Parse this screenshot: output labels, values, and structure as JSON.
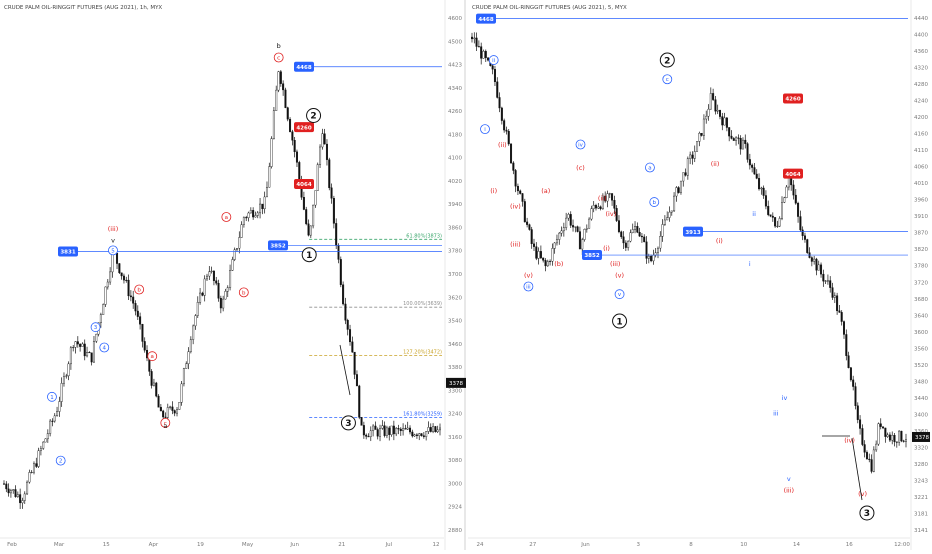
{
  "layout": "two-panel",
  "colors": {
    "up": "#111111",
    "badge_blue": "#2962ff",
    "badge_red": "#e02020",
    "fib_green": "#3aa56b",
    "fib_gray": "#8f8f8f",
    "fib_gold": "#c9a227",
    "fib_blue": "#4a7bd8",
    "dashed_red": "#e56b6b"
  },
  "chart_data": [
    {
      "type": "candlestick",
      "title": "CRUDE PALM OIL-RINGGIT FUTURES (AUG 2021), 1h, MYX",
      "x_ticks": [
        "Feb",
        "Mar",
        "15",
        "Apr",
        "19",
        "May",
        "Jun",
        "21",
        "Jul",
        "12"
      ],
      "y_ticks": [
        "4600",
        "4500",
        "4423",
        "4340",
        "4260",
        "4180",
        "4100",
        "4020",
        "3940",
        "3860",
        "3780",
        "3700",
        "3620",
        "3540",
        "3460",
        "3380",
        "3300",
        "3240",
        "3160",
        "3080",
        "3000",
        "2924",
        "2880"
      ],
      "ylim": [
        2850,
        4650
      ],
      "path": [
        [
          0,
          3030
        ],
        [
          0.04,
          2980
        ],
        [
          0.08,
          3130
        ],
        [
          0.12,
          3280
        ],
        [
          0.16,
          3530
        ],
        [
          0.2,
          3460
        ],
        [
          0.25,
          3831
        ],
        [
          0.3,
          3640
        ],
        [
          0.33,
          3440
        ],
        [
          0.36,
          3260
        ],
        [
          0.4,
          3300
        ],
        [
          0.43,
          3560
        ],
        [
          0.47,
          3780
        ],
        [
          0.5,
          3640
        ],
        [
          0.55,
          3950
        ],
        [
          0.6,
          4000
        ],
        [
          0.63,
          4468
        ],
        [
          0.67,
          4150
        ],
        [
          0.7,
          3860
        ],
        [
          0.73,
          4260
        ],
        [
          0.76,
          3890
        ],
        [
          0.78,
          3640
        ],
        [
          0.8,
          3480
        ],
        [
          0.82,
          3210
        ]
      ],
      "price_badges": [
        {
          "label": "4468",
          "y": 4468,
          "color": "blue"
        },
        {
          "label": "4260",
          "y": 4260,
          "color": "red"
        },
        {
          "label": "4064",
          "y": 4064,
          "color": "red"
        },
        {
          "label": "3852",
          "y": 3852,
          "color": "blue"
        },
        {
          "label": "3831",
          "y": 3831,
          "color": "blue"
        }
      ],
      "fib_levels": [
        {
          "label": "61.80%(3873)",
          "y": 3873,
          "color": "green"
        },
        {
          "label": "100.00%(3639)",
          "y": 3639,
          "color": "gray"
        },
        {
          "label": "127.20%(3472)",
          "y": 3472,
          "color": "gold"
        },
        {
          "label": "161.80%(3259)",
          "y": 3259,
          "color": "blue"
        }
      ],
      "last_price": "3378",
      "wave_labels": [
        {
          "text": "v",
          "t": 0.25,
          "y": 3870,
          "color": "black"
        },
        {
          "text": "(iii)",
          "t": 0.25,
          "y": 3910,
          "color": "red"
        },
        {
          "text": "5",
          "t": 0.25,
          "y": 3835,
          "color": "blue",
          "circled": true
        },
        {
          "text": "3",
          "t": 0.21,
          "y": 3570,
          "color": "blue",
          "circled": true
        },
        {
          "text": "4",
          "t": 0.23,
          "y": 3500,
          "color": "blue",
          "circled": true
        },
        {
          "text": "1",
          "t": 0.11,
          "y": 3330,
          "color": "blue",
          "circled": true
        },
        {
          "text": "2",
          "t": 0.13,
          "y": 3110,
          "color": "blue",
          "circled": true
        },
        {
          "text": "b",
          "t": 0.31,
          "y": 3700,
          "color": "red",
          "circled": true
        },
        {
          "text": "a",
          "t": 0.34,
          "y": 3470,
          "color": "red",
          "circled": true
        },
        {
          "text": "c",
          "t": 0.37,
          "y": 3240,
          "color": "red",
          "circled": true
        },
        {
          "text": "a",
          "t": 0.37,
          "y": 3230,
          "color": "black"
        },
        {
          "text": "a",
          "t": 0.51,
          "y": 3950,
          "color": "red",
          "circled": true
        },
        {
          "text": "b",
          "t": 0.55,
          "y": 3690,
          "color": "red",
          "circled": true
        },
        {
          "text": "c",
          "t": 0.63,
          "y": 4500,
          "color": "red",
          "circled": true
        },
        {
          "text": "b",
          "t": 0.63,
          "y": 4540,
          "color": "black"
        },
        {
          "text": "2",
          "t": 0.71,
          "y": 4300,
          "color": "black",
          "circled": true
        },
        {
          "text": "1",
          "t": 0.7,
          "y": 3820,
          "color": "black",
          "circled": true
        },
        {
          "text": "3",
          "t": 0.79,
          "y": 3240,
          "color": "black",
          "circled": true
        }
      ]
    },
    {
      "type": "candlestick",
      "title": "CRUDE PALM OIL-RINGGIT FUTURES (AUG 2021), 5, MYX",
      "x_ticks": [
        "24",
        "27",
        "Jun",
        "3",
        "8",
        "10",
        "14",
        "16",
        "12:00"
      ],
      "y_ticks": [
        "4440",
        "4400",
        "4360",
        "4320",
        "4280",
        "4240",
        "4200",
        "4160",
        "4110",
        "4060",
        "4010",
        "3960",
        "3910",
        "3870",
        "3820",
        "3780",
        "3720",
        "3680",
        "3640",
        "3600",
        "3560",
        "3520",
        "3480",
        "3440",
        "3400",
        "3360",
        "3320",
        "3280",
        "3243",
        "3221",
        "3181",
        "3141"
      ],
      "ylim": [
        3120,
        4480
      ],
      "path": [
        [
          0,
          4420
        ],
        [
          0.05,
          4320
        ],
        [
          0.1,
          4050
        ],
        [
          0.14,
          3870
        ],
        [
          0.17,
          3820
        ],
        [
          0.22,
          3960
        ],
        [
          0.25,
          3880
        ],
        [
          0.28,
          3980
        ],
        [
          0.32,
          4000
        ],
        [
          0.35,
          3880
        ],
        [
          0.38,
          3930
        ],
        [
          0.41,
          3830
        ],
        [
          0.45,
          3950
        ],
        [
          0.49,
          4070
        ],
        [
          0.52,
          4140
        ],
        [
          0.55,
          4260
        ],
        [
          0.6,
          4160
        ],
        [
          0.63,
          4130
        ],
        [
          0.65,
          4060
        ],
        [
          0.7,
          3920
        ],
        [
          0.73,
          4064
        ],
        [
          0.76,
          3900
        ],
        [
          0.8,
          3810
        ],
        [
          0.83,
          3760
        ],
        [
          0.85,
          3680
        ],
        [
          0.87,
          3560
        ],
        [
          0.89,
          3400
        ],
        [
          0.92,
          3300
        ],
        [
          0.94,
          3420
        ],
        [
          0.96,
          3378
        ]
      ],
      "price_badges": [
        {
          "label": "4468",
          "y": 4468,
          "color": "blue"
        },
        {
          "label": "4260",
          "y": 4260,
          "color": "red"
        },
        {
          "label": "4064",
          "y": 4064,
          "color": "red"
        },
        {
          "label": "3913",
          "y": 3913,
          "color": "blue"
        },
        {
          "label": "3852",
          "y": 3852,
          "color": "blue"
        }
      ],
      "last_price": "3378",
      "wave_labels": [
        {
          "text": "ii",
          "t": 0.05,
          "y": 4360,
          "color": "blue",
          "circled": true
        },
        {
          "text": "i",
          "t": 0.03,
          "y": 4180,
          "color": "blue",
          "circled": true
        },
        {
          "text": "(ii)",
          "t": 0.07,
          "y": 4140,
          "color": "red"
        },
        {
          "text": "(i)",
          "t": 0.05,
          "y": 4020,
          "color": "red"
        },
        {
          "text": "(iv)",
          "t": 0.1,
          "y": 3980,
          "color": "red"
        },
        {
          "text": "(iii)",
          "t": 0.1,
          "y": 3880,
          "color": "red"
        },
        {
          "text": "(v)",
          "t": 0.13,
          "y": 3800,
          "color": "red"
        },
        {
          "text": "iii",
          "t": 0.13,
          "y": 3770,
          "color": "blue",
          "circled": true
        },
        {
          "text": "(a)",
          "t": 0.17,
          "y": 4020,
          "color": "red"
        },
        {
          "text": "(b)",
          "t": 0.2,
          "y": 3830,
          "color": "red"
        },
        {
          "text": "iv",
          "t": 0.25,
          "y": 4140,
          "color": "blue",
          "circled": true
        },
        {
          "text": "(c)",
          "t": 0.25,
          "y": 4080,
          "color": "red"
        },
        {
          "text": "(ii)",
          "t": 0.3,
          "y": 4000,
          "color": "red"
        },
        {
          "text": "(iv)",
          "t": 0.32,
          "y": 3960,
          "color": "red"
        },
        {
          "text": "(i)",
          "t": 0.31,
          "y": 3870,
          "color": "red"
        },
        {
          "text": "(iii)",
          "t": 0.33,
          "y": 3830,
          "color": "red"
        },
        {
          "text": "(v)",
          "t": 0.34,
          "y": 3800,
          "color": "red"
        },
        {
          "text": "v",
          "t": 0.34,
          "y": 3750,
          "color": "blue",
          "circled": true
        },
        {
          "text": "1",
          "t": 0.34,
          "y": 3680,
          "color": "black",
          "circled": true
        },
        {
          "text": "a",
          "t": 0.41,
          "y": 4080,
          "color": "blue",
          "circled": true
        },
        {
          "text": "b",
          "t": 0.42,
          "y": 3990,
          "color": "blue",
          "circled": true
        },
        {
          "text": "c",
          "t": 0.45,
          "y": 4310,
          "color": "blue",
          "circled": true
        },
        {
          "text": "2",
          "t": 0.45,
          "y": 4360,
          "color": "black",
          "circled": true
        },
        {
          "text": "(ii)",
          "t": 0.56,
          "y": 4090,
          "color": "red"
        },
        {
          "text": "(i)",
          "t": 0.57,
          "y": 3890,
          "color": "red"
        },
        {
          "text": "ii",
          "t": 0.65,
          "y": 3960,
          "color": "blue"
        },
        {
          "text": "i",
          "t": 0.64,
          "y": 3830,
          "color": "blue"
        },
        {
          "text": "iv",
          "t": 0.72,
          "y": 3480,
          "color": "blue"
        },
        {
          "text": "iii",
          "t": 0.7,
          "y": 3440,
          "color": "blue"
        },
        {
          "text": "v",
          "t": 0.73,
          "y": 3270,
          "color": "blue"
        },
        {
          "text": "(iii)",
          "t": 0.73,
          "y": 3240,
          "color": "red"
        },
        {
          "text": "(iv)",
          "t": 0.87,
          "y": 3370,
          "color": "red"
        },
        {
          "text": "(v)",
          "t": 0.9,
          "y": 3230,
          "color": "red"
        },
        {
          "text": "3",
          "t": 0.91,
          "y": 3180,
          "color": "black",
          "circled": true
        }
      ]
    }
  ]
}
